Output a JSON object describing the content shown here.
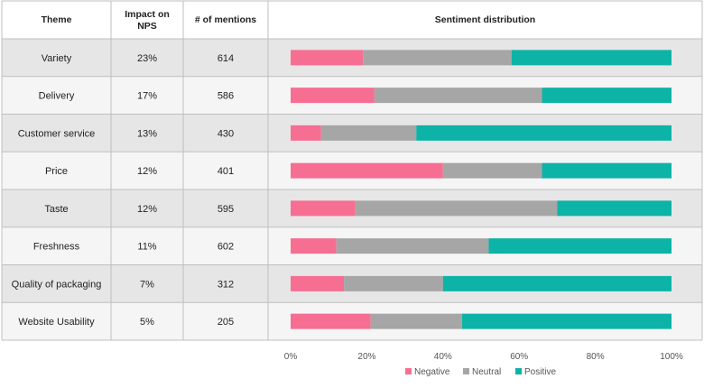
{
  "chart_data": {
    "type": "bar",
    "subtype": "stacked-100-percent-table",
    "columns": {
      "theme": "Theme",
      "impact_line1": "Impact on",
      "impact_line2": "NPS",
      "mentions": "# of mentions",
      "sentiment": "Sentiment distribution"
    },
    "rows": [
      {
        "theme": "Variety",
        "impact": "23%",
        "mentions": "614",
        "negative": 19,
        "neutral": 39,
        "positive": 42
      },
      {
        "theme": "Delivery",
        "impact": "17%",
        "mentions": "586",
        "negative": 22,
        "neutral": 44,
        "positive": 34
      },
      {
        "theme": "Customer service",
        "impact": "13%",
        "mentions": "430",
        "negative": 8,
        "neutral": 25,
        "positive": 67
      },
      {
        "theme": "Price",
        "impact": "12%",
        "mentions": "401",
        "negative": 40,
        "neutral": 26,
        "positive": 34
      },
      {
        "theme": "Taste",
        "impact": "12%",
        "mentions": "595",
        "negative": 17,
        "neutral": 53,
        "positive": 30
      },
      {
        "theme": "Freshness",
        "impact": "11%",
        "mentions": "602",
        "negative": 12,
        "neutral": 40,
        "positive": 48
      },
      {
        "theme": "Quality of packaging",
        "impact": "7%",
        "mentions": "312",
        "negative": 14,
        "neutral": 26,
        "positive": 60
      },
      {
        "theme": "Website Usability",
        "impact": "5%",
        "mentions": "205",
        "negative": 21,
        "neutral": 24,
        "positive": 55
      }
    ],
    "series": [
      {
        "name": "Negative",
        "key": "negative",
        "color": "#f76e93"
      },
      {
        "name": "Neutral",
        "key": "neutral",
        "color": "#a6a6a6"
      },
      {
        "name": "Positive",
        "key": "positive",
        "color": "#0db3a6"
      }
    ],
    "xlim": [
      0,
      100
    ],
    "xticks": [
      "0%",
      "20%",
      "40%",
      "60%",
      "80%",
      "100%"
    ],
    "legend_position": "bottom-center",
    "colors": {
      "row_shaded": "#e6e6e6",
      "row_plain": "#f5f5f5",
      "grid": "#bfbfbf"
    }
  }
}
